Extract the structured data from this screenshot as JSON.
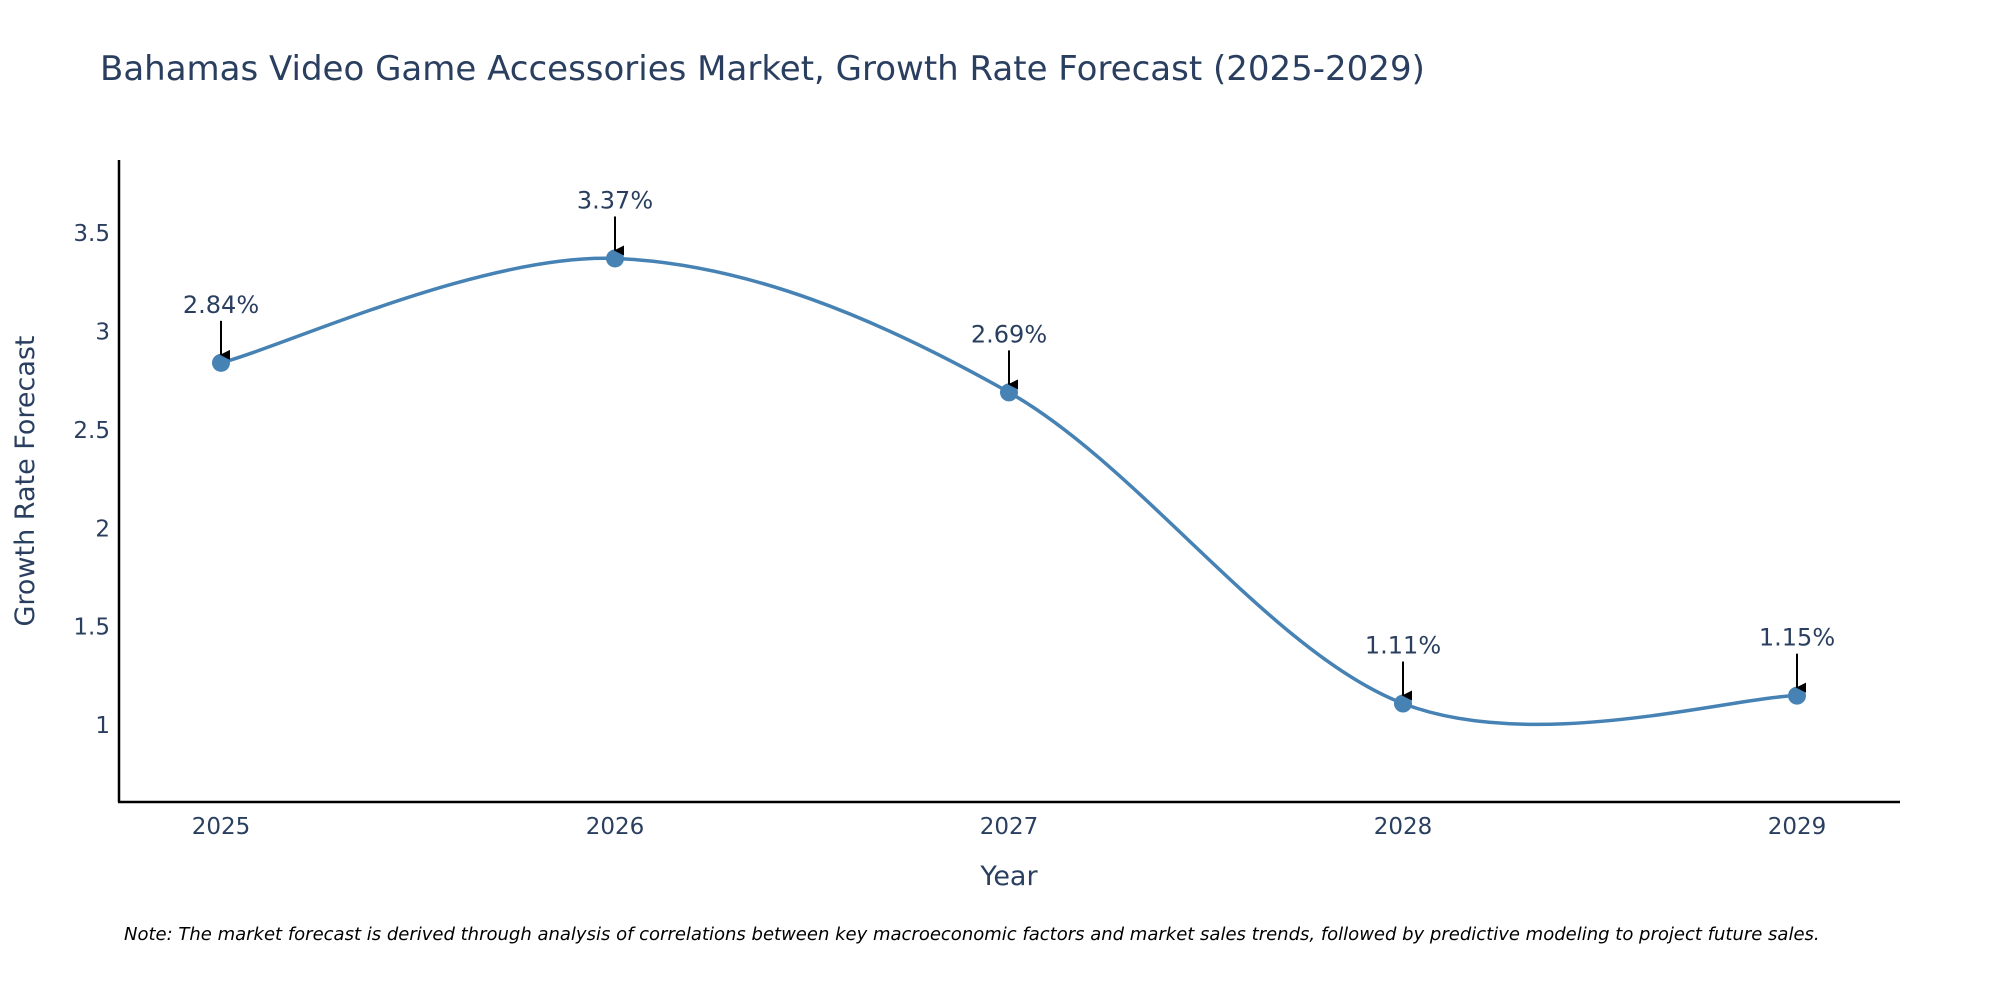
{
  "chart_data": {
    "type": "line",
    "title": "Bahamas Video Game Accessories Market, Growth Rate Forecast (2025-2029)",
    "xlabel": "Year",
    "ylabel": "Growth Rate Forecast",
    "categories": [
      "2025",
      "2026",
      "2027",
      "2028",
      "2029"
    ],
    "series": [
      {
        "name": "Growth Rate Forecast",
        "values": [
          2.84,
          3.37,
          2.69,
          1.11,
          1.15
        ],
        "labels": [
          "2.84%",
          "3.37%",
          "2.69%",
          "1.11%",
          "1.15%"
        ]
      }
    ],
    "yticks": [
      1,
      1.5,
      2,
      2.5,
      3,
      3.5
    ],
    "ytick_labels": [
      "1",
      "1.5",
      "2",
      "2.5",
      "3",
      "3.5"
    ],
    "ylim": [
      0.61,
      3.87
    ],
    "grid": false,
    "line_color": "#4682b4",
    "annotation_color": "#000000",
    "text_color": "#2a3f5f",
    "note": "Note: The market forecast is derived through analysis of correlations between key macroeconomic factors and market sales trends, followed by predictive modeling to project future sales."
  }
}
